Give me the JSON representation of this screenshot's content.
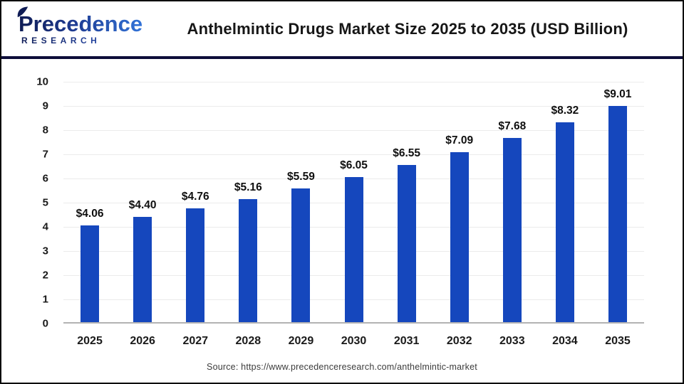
{
  "header": {
    "logo": {
      "line1": "Precedence",
      "line2": "RESEARCH",
      "dark_blue": "#0f1c55",
      "light_blue": "#3273d8"
    },
    "title": "Anthelmintic Drugs Market Size 2025 to 2035 (USD Billion)"
  },
  "chart_data": {
    "type": "bar",
    "title": "Anthelmintic Drugs Market Size 2025 to 2035 (USD Billion)",
    "categories": [
      "2025",
      "2026",
      "2027",
      "2028",
      "2029",
      "2030",
      "2031",
      "2032",
      "2033",
      "2034",
      "2035"
    ],
    "values": [
      4.06,
      4.4,
      4.76,
      5.16,
      5.59,
      6.05,
      6.55,
      7.09,
      7.68,
      8.32,
      9.01
    ],
    "value_labels": [
      "$4.06",
      "$4.40",
      "$4.76",
      "$5.16",
      "$5.59",
      "$6.05",
      "$6.55",
      "$7.09",
      "$7.68",
      "$8.32",
      "$9.01"
    ],
    "unit": "USD Billion",
    "xlabel": "",
    "ylabel": "",
    "ylim": [
      0,
      10
    ],
    "yticks": [
      0,
      1,
      2,
      3,
      4,
      5,
      6,
      7,
      8,
      9,
      10
    ],
    "grid": "horizontal",
    "legend": "none",
    "bar_color": "#1547bd",
    "gridline_color": "#ebebeb",
    "baseline_color": "#b3b3b3"
  },
  "footer": {
    "source": "Source: https://www.precedenceresearch.com/anthelmintic-market"
  }
}
